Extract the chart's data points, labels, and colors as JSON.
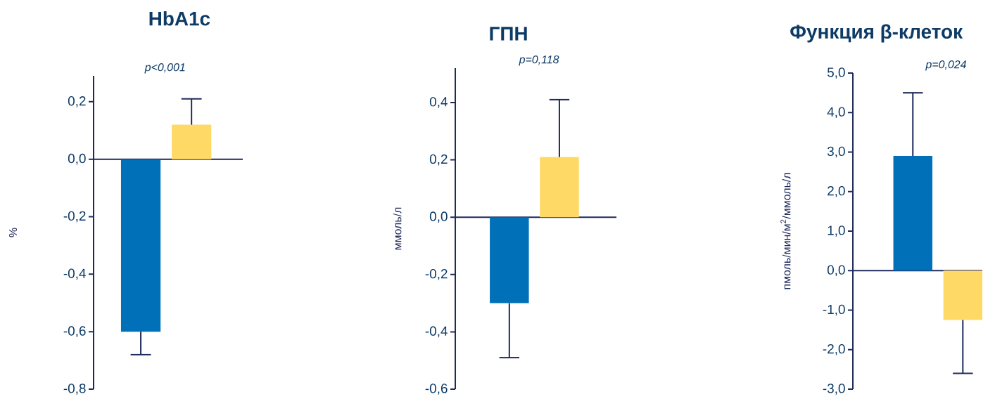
{
  "chart_data": [
    {
      "type": "bar",
      "title": "HbA1c",
      "ylabel": "%",
      "annotations": [
        "p<0,001"
      ],
      "categories": [
        null,
        null
      ],
      "values": [
        -0.6,
        0.12
      ],
      "colors": [
        "#0070b8",
        "#ffd966"
      ],
      "errors": [
        [
          -0.68,
          -0.6
        ],
        [
          0.12,
          0.21
        ]
      ],
      "ylim": [
        -0.8,
        0.29
      ],
      "yticks": [
        {
          "value": -0.8,
          "label": "-0,8"
        },
        {
          "value": -0.6,
          "label": "-0,6"
        },
        {
          "value": -0.4,
          "label": "-0,4"
        },
        {
          "value": -0.2,
          "label": "-0,2"
        },
        {
          "value": 0,
          "label": "0,0"
        },
        {
          "value": 0.2,
          "label": "0,2"
        }
      ]
    },
    {
      "type": "bar",
      "title": "ГПН",
      "ylabel": "ммоль/л",
      "annotations": [
        "p=0,118"
      ],
      "categories": [
        null,
        null
      ],
      "values": [
        -0.3,
        0.21
      ],
      "colors": [
        "#0070b8",
        "#ffd966"
      ],
      "errors": [
        [
          -0.49,
          -0.3
        ],
        [
          0.21,
          0.41
        ]
      ],
      "ylim": [
        -0.6,
        0.52
      ],
      "yticks": [
        {
          "value": -0.6,
          "label": "-0,6"
        },
        {
          "value": -0.4,
          "label": "-0,4"
        },
        {
          "value": -0.2,
          "label": "-0,2"
        },
        {
          "value": 0,
          "label": "0,0"
        },
        {
          "value": 0.2,
          "label": "0,2"
        },
        {
          "value": 0.4,
          "label": "0,4"
        }
      ]
    },
    {
      "type": "bar",
      "title": "Функция β-клеток",
      "ylabel": "пмоль/мин/м$^{2}$/ммоль/л",
      "annotations": [
        "p=0,024"
      ],
      "categories": [
        null,
        null
      ],
      "values": [
        2.9,
        -1.25
      ],
      "colors": [
        "#0070b8",
        "#ffd966"
      ],
      "errors": [
        [
          2.9,
          4.5
        ],
        [
          -2.6,
          -1.25
        ]
      ],
      "ylim": [
        -3,
        5
      ],
      "yticks": [
        {
          "value": -3,
          "label": "-3,0"
        },
        {
          "value": -2,
          "label": "-2,0"
        },
        {
          "value": -1,
          "label": "-1,0"
        },
        {
          "value": 0,
          "label": "0,0"
        },
        {
          "value": 1,
          "label": "1,0"
        },
        {
          "value": 2,
          "label": "2,0"
        },
        {
          "value": 3,
          "label": "3,0"
        },
        {
          "value": 4,
          "label": "4,0"
        },
        {
          "value": 5,
          "label": "5,0"
        }
      ]
    }
  ]
}
